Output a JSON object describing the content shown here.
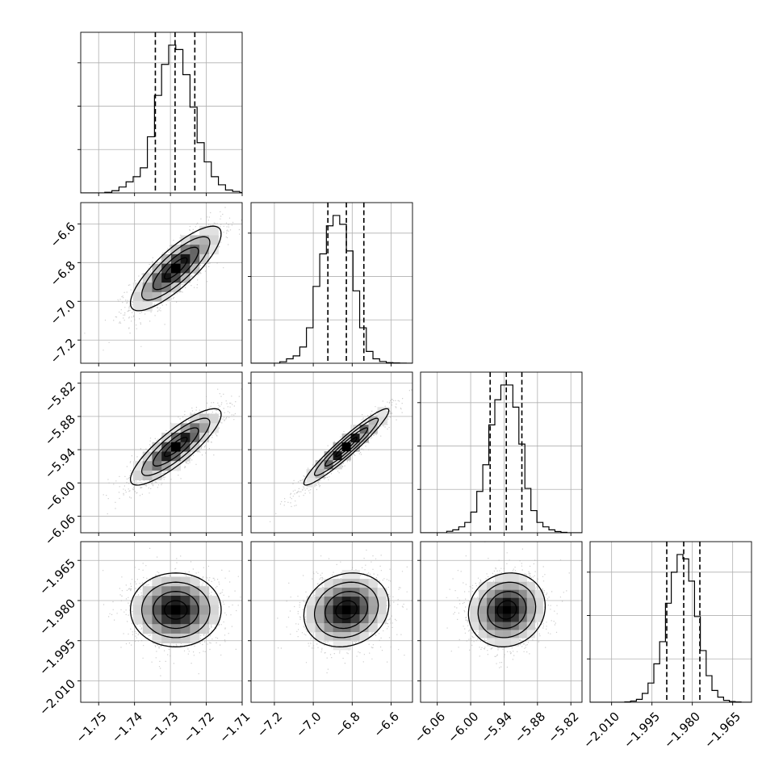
{
  "chart_data": {
    "type": "corner",
    "parameters": [
      {
        "lim": [
          -1.755,
          -1.71
        ],
        "ticks": [
          -1.75,
          -1.74,
          -1.73,
          -1.72,
          -1.71
        ],
        "tick_labels": [
          "−1.75",
          "−1.74",
          "−1.73",
          "−1.72",
          "−1.71"
        ],
        "mean": -1.7285,
        "sigma": 0.0055,
        "quantiles": [
          -1.7342,
          -1.7287,
          -1.7232
        ],
        "hist": [
          0.004,
          0.015,
          0.04,
          0.075,
          0.11,
          0.17,
          0.38,
          0.66,
          0.87,
          1.0,
          0.97,
          0.8,
          0.58,
          0.34,
          0.21,
          0.11,
          0.055,
          0.02,
          0.01,
          0.003
        ]
      },
      {
        "lim": [
          -7.32,
          -6.49
        ],
        "ticks": [
          -7.2,
          -7.0,
          -6.8,
          -6.6
        ],
        "tick_labels": [
          "−7.2",
          "−7.0",
          "−6.8",
          "−6.6"
        ],
        "mean": -6.83,
        "sigma": 0.095,
        "quantiles": [
          -6.925,
          -6.83,
          -6.74
        ],
        "hist": [
          0.01,
          0.03,
          0.05,
          0.11,
          0.24,
          0.52,
          0.74,
          0.93,
          1.0,
          0.94,
          0.76,
          0.49,
          0.24,
          0.08,
          0.03,
          0.012,
          0.004,
          0.002,
          0.001,
          0.0
        ]
      },
      {
        "lim": [
          -6.09,
          -5.8
        ],
        "ticks": [
          -6.06,
          -6.0,
          -5.94,
          -5.88,
          -5.82
        ],
        "tick_labels": [
          "−6.06",
          "−6.00",
          "−5.94",
          "−5.88",
          "−5.82"
        ],
        "mean": -5.935,
        "sigma": 0.03,
        "quantiles": [
          -5.965,
          -5.936,
          -5.908
        ],
        "hist": [
          0.01,
          0.02,
          0.04,
          0.07,
          0.14,
          0.28,
          0.46,
          0.73,
          0.9,
          1.0,
          1.0,
          0.85,
          0.6,
          0.3,
          0.15,
          0.07,
          0.04,
          0.02,
          0.008,
          0.003
        ]
      },
      {
        "lim": [
          -2.018,
          -1.958
        ],
        "ticks": [
          -2.01,
          -1.995,
          -1.98,
          -1.965
        ],
        "tick_labels": [
          "−2.010",
          "−1.995",
          "−1.980",
          "−1.965"
        ],
        "mean": -1.9835,
        "sigma": 0.006,
        "quantiles": [
          -1.9895,
          -1.9832,
          -1.9772
        ],
        "hist": [
          0.003,
          0.008,
          0.02,
          0.06,
          0.13,
          0.26,
          0.41,
          0.67,
          0.88,
          1.0,
          0.97,
          0.82,
          0.58,
          0.35,
          0.18,
          0.08,
          0.035,
          0.013,
          0.005,
          0.002
        ]
      }
    ],
    "correlations": {
      "1_0": 0.82,
      "2_0": 0.85,
      "2_1": 0.95,
      "3_0": 0.0,
      "3_1": 0.15,
      "3_2": 0.1
    },
    "marginal_ticks": [
      [
        0.27,
        0.54,
        0.81
      ],
      [
        0.27,
        0.54,
        0.81
      ],
      [
        0.27,
        0.54,
        0.81
      ],
      [
        0.27,
        0.54,
        0.81
      ]
    ],
    "grid": true,
    "quantile_line_style": "dashed",
    "colors": {
      "line": "#000000",
      "grid": "#b0b0b0",
      "points": "#a6a6a6"
    }
  }
}
